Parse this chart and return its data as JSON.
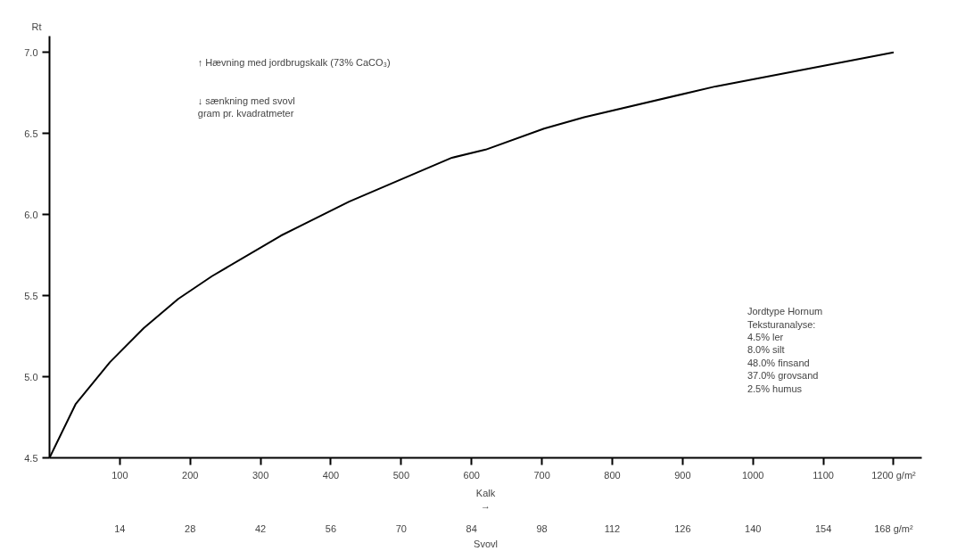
{
  "chart_data": {
    "type": "line",
    "ylabel": "Rt",
    "xlabel": "Kalk\n→",
    "x2label": "Svovl",
    "x": [
      0,
      37,
      86,
      134,
      183,
      231,
      329,
      426,
      523,
      572,
      620,
      703,
      760,
      947,
      1200
    ],
    "series": [
      {
        "color": "#000000",
        "values": [
          4.5,
          4.83,
          5.09,
          5.3,
          5.48,
          5.62,
          5.87,
          6.08,
          6.26,
          6.35,
          6.4,
          6.53,
          6.6,
          6.79,
          7.0
        ]
      }
    ],
    "xlim": [
      0,
      1240
    ],
    "ylim": [
      4.5,
      7.1
    ],
    "xticks": [
      100,
      200,
      300,
      400,
      500,
      600,
      700,
      800,
      900,
      1000,
      1100,
      {
        "value": 1200,
        "label": "1200 g/m²"
      }
    ],
    "yticks": [
      {
        "value": 4.5,
        "label": "4.5"
      },
      {
        "value": 5.0,
        "label": "5.0"
      },
      {
        "value": 5.5,
        "label": "5.5"
      },
      {
        "value": 6.0,
        "label": "6.0"
      },
      {
        "value": 6.5,
        "label": "6.5"
      },
      {
        "value": 7.0,
        "label": "7.0"
      }
    ],
    "x2lim": [
      0,
      173.6
    ],
    "x2ticks": [
      14,
      28,
      42,
      56,
      70,
      84,
      98,
      112,
      126,
      140,
      154,
      {
        "value": 168,
        "label": "168 g/m²"
      }
    ],
    "grid": false,
    "marker": "none",
    "line_style": "solid",
    "annotations": [
      "↑ Hævning med jordbrugskalk (73% CaCO₃)",
      "↓ sænkning med svovl\n   gram pr. kvadratmeter",
      "Jordtype Hornum\nTeksturanalyse:\n  4.5% ler\n  8.0% silt\n48.0% finsand\n37.0% grovsand\n  2.5% humus"
    ]
  }
}
